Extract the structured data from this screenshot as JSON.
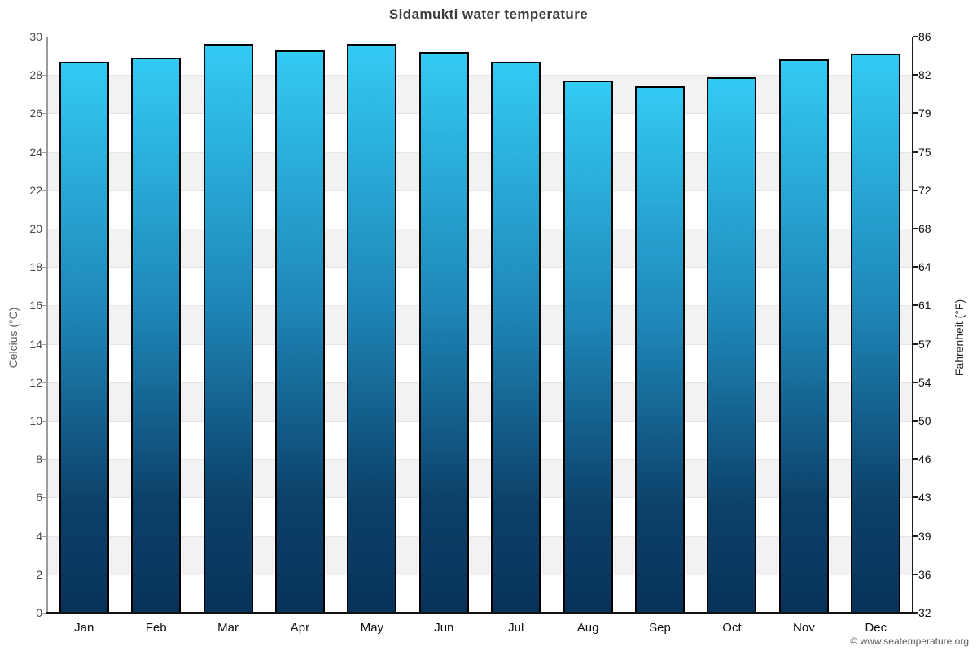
{
  "chart_data": {
    "type": "bar",
    "title": "Sidamukti water temperature",
    "categories": [
      "Jan",
      "Feb",
      "Mar",
      "Apr",
      "May",
      "Jun",
      "Jul",
      "Aug",
      "Sep",
      "Oct",
      "Nov",
      "Dec"
    ],
    "values": [
      28.7,
      28.9,
      29.6,
      29.3,
      29.6,
      29.2,
      28.7,
      27.7,
      27.4,
      27.9,
      28.8,
      29.1
    ],
    "ylabel": "Celcius (°C)",
    "ylabel_right": "Fahrenheit (°F)",
    "ylim": [
      0,
      30
    ],
    "yticks_celsius": [
      30,
      28,
      26,
      24,
      22,
      20,
      18,
      16,
      14,
      12,
      10,
      8,
      6,
      4,
      2,
      0
    ],
    "yticks_fahrenheit": [
      86,
      82,
      79,
      75,
      72,
      68,
      64,
      61,
      57,
      54,
      50,
      46,
      43,
      39,
      36,
      32
    ],
    "legend": "none",
    "grid": "alternating horizontal bands"
  },
  "footer": {
    "credit": "© www.seatemperature.org"
  },
  "colors": {
    "bar_gradient_top": "#33CAF4",
    "bar_gradient_upper_mid": "#1E87B8",
    "bar_gradient_lower_mid": "#0C4169",
    "bar_gradient_bottom": "#07325B",
    "bar_border": "#000000",
    "band_white": "#FFFFFF",
    "band_gray": "#F2F2F2",
    "gridline": "#E5E5E5",
    "axis_left": "#9B9B9B",
    "axis_right": "#1C1C1C",
    "axis_bottom": "#111111",
    "title_color": "#3D3D3D"
  }
}
